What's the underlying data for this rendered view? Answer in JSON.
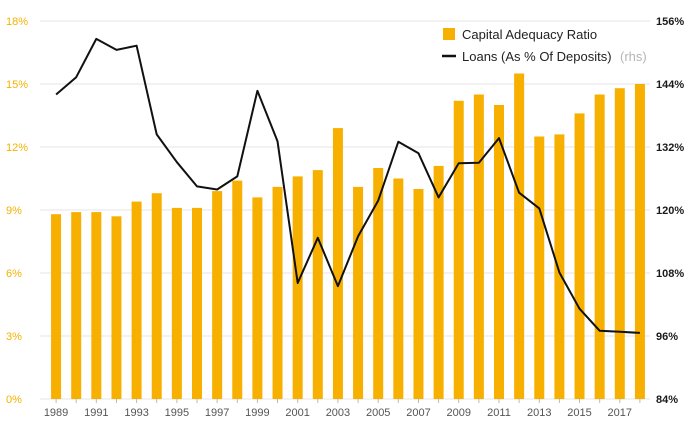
{
  "chart_data": {
    "type": "bar+line",
    "title": "",
    "colors": {
      "bars": "#f7b000",
      "line": "#111111",
      "left_axis_text": "#f3b200",
      "right_axis_text": "#1a1a1a",
      "grid": "#e6e6e6"
    },
    "categories": [
      1989,
      1990,
      1991,
      1992,
      1993,
      1994,
      1995,
      1996,
      1997,
      1998,
      1999,
      2000,
      2001,
      2002,
      2003,
      2004,
      2005,
      2006,
      2007,
      2008,
      2009,
      2010,
      2011,
      2012,
      2013,
      2014,
      2015,
      2016,
      2017,
      2018
    ],
    "x_tick_labels": [
      "1989",
      "1991",
      "1993",
      "1995",
      "1997",
      "1999",
      "2001",
      "2003",
      "2005",
      "2007",
      "2009",
      "2011",
      "2013",
      "2015",
      "2017"
    ],
    "series": [
      {
        "name": "Capital Adequacy Ratio",
        "axis": "left",
        "type": "bar",
        "values": [
          8.8,
          8.9,
          8.9,
          8.7,
          9.4,
          9.8,
          9.1,
          9.1,
          9.9,
          10.4,
          9.6,
          10.1,
          10.6,
          10.9,
          12.9,
          10.1,
          11.0,
          10.5,
          10.0,
          11.1,
          14.2,
          14.5,
          14.0,
          15.5,
          12.5,
          12.6,
          13.6,
          14.5,
          14.8,
          15.0
        ]
      },
      {
        "name": "Loans (As % Of Deposits)",
        "name_suffix": "(rhs)",
        "axis": "right",
        "type": "line",
        "values": [
          142.0,
          145.3,
          152.6,
          150.5,
          151.3,
          134.4,
          129.1,
          124.5,
          123.9,
          126.4,
          142.7,
          133.1,
          106.1,
          114.7,
          105.5,
          115.0,
          121.8,
          133.0,
          130.8,
          122.4,
          128.9,
          129.0,
          133.7,
          123.3,
          120.3,
          108.1,
          101.2,
          97.0,
          96.8,
          96.6
        ]
      }
    ],
    "y_left": {
      "min": 0,
      "max": 18,
      "ticks": [
        0,
        3,
        6,
        9,
        12,
        15,
        18
      ],
      "tick_labels": [
        "0%",
        "3%",
        "6%",
        "9%",
        "12%",
        "15%",
        "18%"
      ]
    },
    "y_right": {
      "min": 84,
      "max": 156,
      "ticks": [
        84,
        96,
        108,
        120,
        132,
        144,
        156
      ],
      "tick_labels": [
        "84%",
        "96%",
        "108%",
        "120%",
        "132%",
        "144%",
        "156%"
      ]
    },
    "legend": {
      "placement": "top-right",
      "items": [
        {
          "label": "Capital Adequacy Ratio",
          "suffix": "",
          "marker": "bar"
        },
        {
          "label": "Loans (As % Of Deposits)",
          "suffix": "(rhs)",
          "marker": "line"
        }
      ]
    }
  }
}
